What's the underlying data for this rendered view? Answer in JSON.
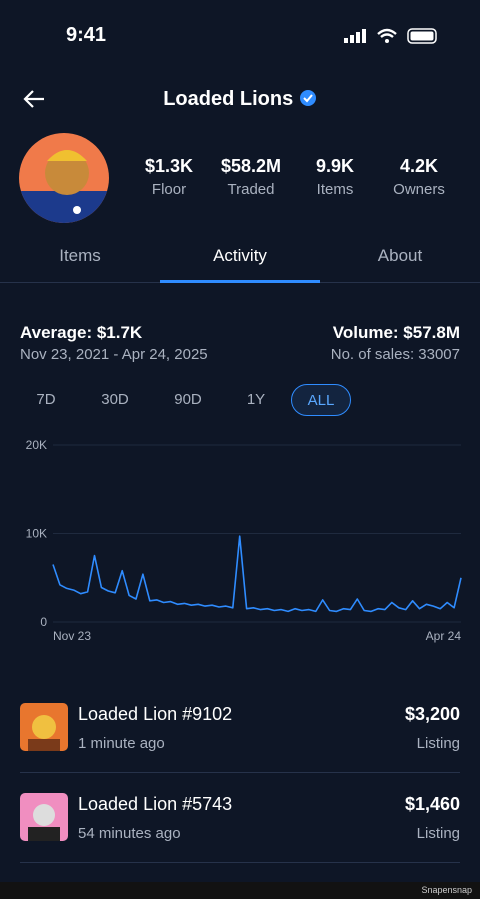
{
  "status_bar": {
    "time": "9:41"
  },
  "header": {
    "title": "Loaded Lions"
  },
  "stats": [
    {
      "value": "$1.3K",
      "label": "Floor"
    },
    {
      "value": "$58.2M",
      "label": "Traded"
    },
    {
      "value": "9.9K",
      "label": "Items"
    },
    {
      "value": "4.2K",
      "label": "Owners"
    }
  ],
  "tabs": [
    "Items",
    "Activity",
    "About"
  ],
  "summary": {
    "average": "Average: $1.7K",
    "date_range": "Nov 23, 2021 - Apr 24, 2025",
    "volume": "Volume: $57.8M",
    "sales": "No. of sales: 33007"
  },
  "periods": [
    "7D",
    "30D",
    "90D",
    "1Y",
    "ALL"
  ],
  "chart_data": {
    "type": "line",
    "color": "#2f8cff",
    "grid": true,
    "ylim": [
      0,
      20000
    ],
    "yticks": [
      0,
      {
        "value": 10000,
        "label": "10K"
      },
      {
        "value": 20000,
        "label": "20K"
      }
    ],
    "categories": [
      "Nov 23",
      null,
      null,
      null,
      null,
      null,
      null,
      null,
      null,
      null,
      null,
      null,
      null,
      null,
      null,
      null,
      null,
      null,
      null,
      null,
      null,
      null,
      null,
      null,
      null,
      null,
      null,
      null,
      null,
      null,
      null,
      null,
      null,
      null,
      null,
      null,
      null,
      null,
      null,
      null,
      null,
      null,
      null,
      null,
      null,
      null,
      null,
      null,
      null,
      null,
      null,
      null,
      null,
      null,
      null,
      null,
      null,
      null,
      null,
      "Apr 24"
    ],
    "values": [
      6500,
      4200,
      3800,
      3600,
      3200,
      3400,
      7500,
      3900,
      3500,
      3300,
      5800,
      3000,
      2600,
      5400,
      2400,
      2500,
      2200,
      2300,
      2000,
      2100,
      1900,
      2000,
      1800,
      1900,
      1700,
      1800,
      1600,
      9700,
      1500,
      1600,
      1400,
      1500,
      1300,
      1400,
      1200,
      1500,
      1300,
      1400,
      1200,
      2500,
      1300,
      1200,
      1500,
      1400,
      2600,
      1300,
      1200,
      1500,
      1400,
      2200,
      1600,
      1400,
      2400,
      1500,
      2000,
      1800,
      1500,
      2200,
      1600,
      5000
    ]
  },
  "activity": [
    {
      "name": "Loaded Lion #9102",
      "time": "1 minute ago",
      "price": "$3,200",
      "type": "Listing"
    },
    {
      "name": "Loaded Lion #5743",
      "time": "54 minutes ago",
      "price": "$1,460",
      "type": "Listing"
    }
  ],
  "watermark": "Snapensnap"
}
